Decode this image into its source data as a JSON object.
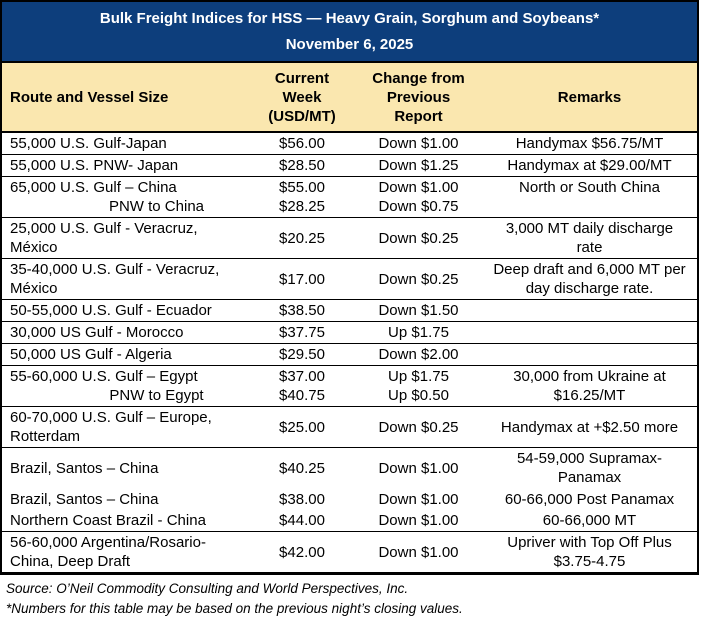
{
  "header": {
    "title": "Bulk Freight Indices for HSS — Heavy Grain, Sorghum and Soybeans*",
    "date": "November 6, 2025"
  },
  "columns": {
    "route": "Route and Vessel Size",
    "week_lines": [
      "Current",
      "Week",
      "(USD/MT)"
    ],
    "change_lines": [
      "Change from",
      "Previous",
      "Report"
    ],
    "remarks": "Remarks"
  },
  "rows": [
    {
      "route": [
        "55,000 U.S. Gulf-Japan"
      ],
      "week": [
        "$56.00"
      ],
      "change": [
        "Down $1.00"
      ],
      "remarks": [
        "Handymax  $56.75/MT"
      ]
    },
    {
      "route": [
        "55,000 U.S. PNW- Japan"
      ],
      "week": [
        "$28.50"
      ],
      "change": [
        "Down $1.25"
      ],
      "remarks": [
        "Handymax at $29.00/MT"
      ]
    },
    {
      "route": [
        "65,000 U.S. Gulf – China",
        "PNW to China"
      ],
      "week": [
        "$55.00",
        "$28.25"
      ],
      "change": [
        "Down $1.00",
        "Down $0.75"
      ],
      "remarks": [
        "North or South China"
      ]
    },
    {
      "route": [
        "25,000 U.S. Gulf - Veracruz,",
        "México"
      ],
      "week": [
        "$20.25"
      ],
      "change": [
        "Down $0.25"
      ],
      "remarks": [
        "3,000 MT daily discharge",
        "rate"
      ]
    },
    {
      "route": [
        "35-40,000 U.S. Gulf - Veracruz,",
        "México"
      ],
      "week": [
        "$17.00"
      ],
      "change": [
        "Down $0.25"
      ],
      "remarks": [
        "Deep draft and 6,000 MT per",
        "day discharge rate."
      ]
    },
    {
      "route": [
        "50-55,000 U.S. Gulf - Ecuador"
      ],
      "week": [
        "$38.50"
      ],
      "change": [
        "Down $1.50"
      ],
      "remarks": []
    },
    {
      "route": [
        "30,000 US Gulf - Morocco"
      ],
      "week": [
        "$37.75"
      ],
      "change": [
        "Up $1.75"
      ],
      "remarks": []
    },
    {
      "route": [
        "50,000 US Gulf - Algeria"
      ],
      "week": [
        "$29.50"
      ],
      "change": [
        "Down $2.00"
      ],
      "remarks": []
    },
    {
      "route": [
        "55-60,000 U.S. Gulf – Egypt",
        "PNW to Egypt"
      ],
      "week": [
        "$37.00",
        "$40.75"
      ],
      "change": [
        "Up $1.75",
        "Up $0.50"
      ],
      "remarks": [
        "30,000 from Ukraine at",
        "$16.25/MT"
      ]
    },
    {
      "route": [
        "60-70,000 U.S. Gulf – Europe,",
        "Rotterdam"
      ],
      "week": [
        "$25.00"
      ],
      "change": [
        "Down $0.25"
      ],
      "remarks": [
        "Handymax at +$2.50 more"
      ]
    },
    {
      "route": [
        "Brazil, Santos – China"
      ],
      "week": [
        "$40.25"
      ],
      "change": [
        "Down $1.00"
      ],
      "remarks": [
        "54-59,000 Supramax-",
        "Panamax"
      ]
    },
    {
      "route": [
        "Brazil, Santos – China"
      ],
      "week": [
        "$38.00"
      ],
      "change": [
        "Down $1.00"
      ],
      "remarks": [
        "60-66,000  Post Panamax"
      ]
    },
    {
      "route": [
        "Northern Coast Brazil - China"
      ],
      "week": [
        "$44.00"
      ],
      "change": [
        "Down $1.00"
      ],
      "remarks": [
        "60-66,000 MT"
      ]
    },
    {
      "route": [
        "56-60,000 Argentina/Rosario-",
        "China, Deep Draft"
      ],
      "week": [
        "$42.00"
      ],
      "change": [
        "Down $1.00"
      ],
      "remarks": [
        "Upriver with Top Off Plus",
        "$3.75-4.75"
      ]
    }
  ],
  "footer": {
    "source": "Source: O’Neil Commodity Consulting and World Perspectives, Inc.",
    "footnote": "*Numbers for this table may be based on the previous night’s closing values."
  },
  "colors": {
    "title_band_blue": "#0D3E7C",
    "title_text_white": "#FFFFFF",
    "header_tan": "#FAE7AF",
    "border_black": "#000000"
  }
}
